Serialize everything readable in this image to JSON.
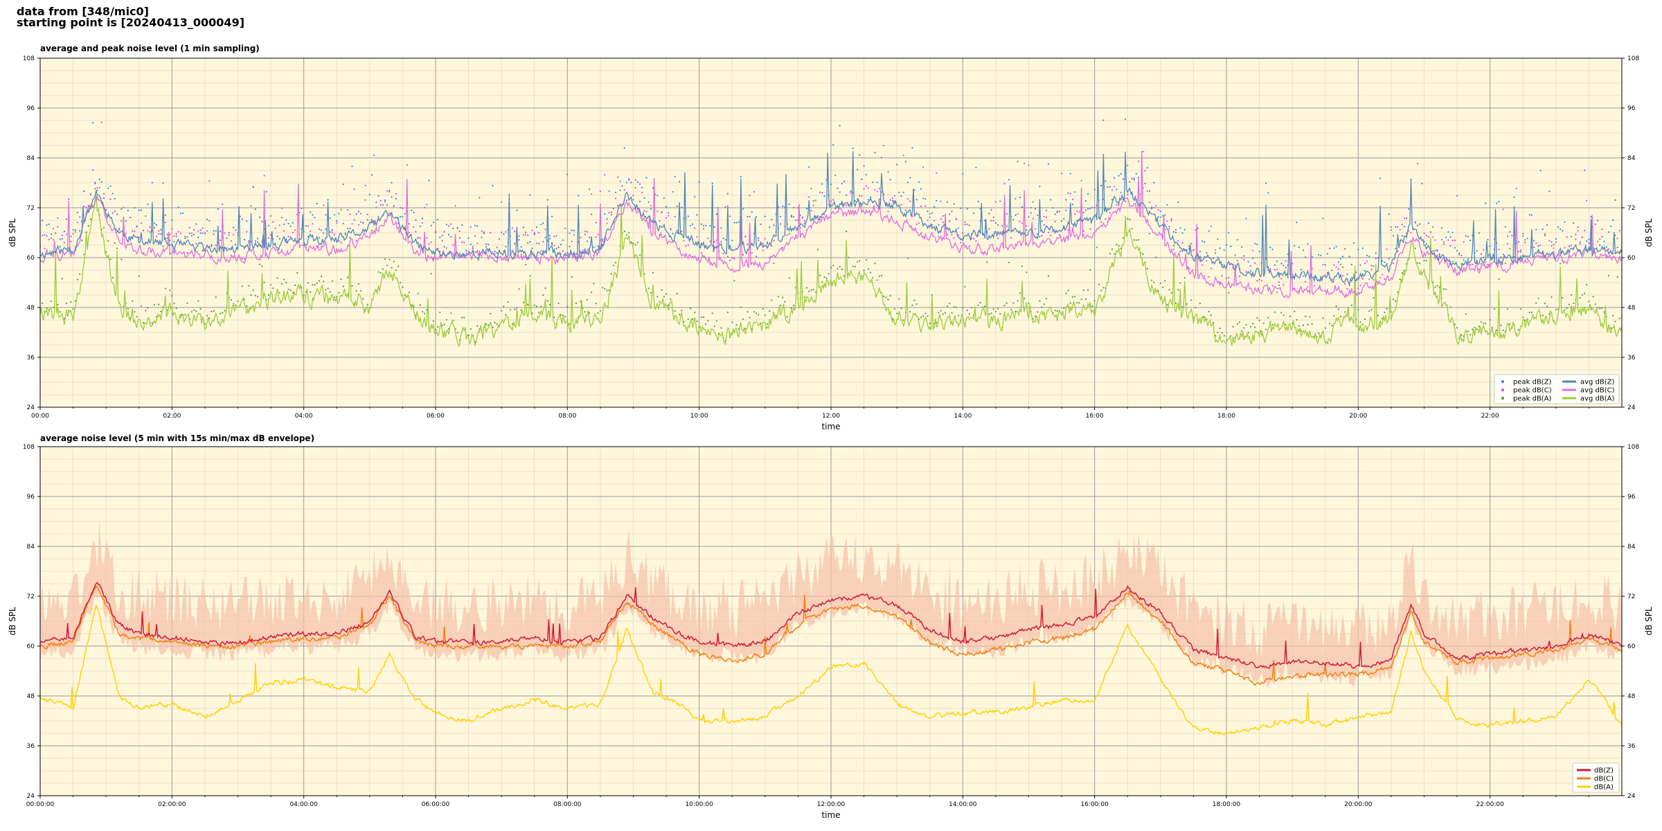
{
  "header": {
    "line1": "data from [348/mic0]",
    "line2": "starting point is [20240413_000049]"
  },
  "colors": {
    "plot_bg": "#fff7dc",
    "grid_major": "#9a9a9a",
    "grid_minor": "#e0d9c4",
    "peak_z": "#1f8fd6",
    "peak_c": "#e83ce8",
    "peak_a": "#4a9c3a",
    "avg_z": "#4f86b8",
    "avg_c": "#e06ce0",
    "avg_a": "#9ccc3c",
    "env": "#f5c0a8",
    "dbz": "#d01a3a",
    "dbc": "#f57f12",
    "dba": "#ffd20a"
  },
  "chart_data": [
    {
      "type": "line",
      "title": "average and peak noise level (1 min sampling)",
      "xlabel": "time",
      "ylabel": "dB SPL",
      "ylim": [
        24,
        108
      ],
      "xlim_hours": [
        0,
        24
      ],
      "yticks": [
        "24",
        "36",
        "48",
        "60",
        "72",
        "84",
        "96",
        "108"
      ],
      "xtick_labels": [
        "00:00",
        "02:00",
        "04:00",
        "06:00",
        "08:00",
        "10:00",
        "12:00",
        "14:00",
        "16:00",
        "18:00",
        "20:00",
        "22:00"
      ],
      "grid": true,
      "legend_position": "bottom-right",
      "legend": [
        "peak dB(Z)",
        "peak dB(C)",
        "peak dB(A)",
        "avg dB(Z)",
        "avg dB(C)",
        "avg dB(A)"
      ],
      "x_hours": [
        0,
        0.5,
        0.85,
        1.2,
        1.5,
        2.0,
        2.5,
        3.0,
        3.5,
        4.0,
        4.5,
        5.0,
        5.3,
        5.7,
        6.0,
        6.5,
        7.0,
        7.5,
        8.0,
        8.5,
        8.9,
        9.3,
        9.7,
        10.0,
        10.5,
        11.0,
        11.5,
        12.0,
        12.5,
        13.0,
        13.5,
        14.0,
        14.5,
        15.0,
        15.5,
        16.0,
        16.5,
        17.0,
        17.5,
        18.0,
        18.5,
        19.0,
        19.5,
        20.0,
        20.5,
        20.8,
        21.0,
        21.5,
        22.0,
        22.5,
        23.0,
        23.5,
        24.0
      ],
      "series": [
        {
          "name": "avg dB(Z)",
          "values": [
            61,
            62,
            76,
            66,
            64,
            63,
            62,
            62,
            63,
            64,
            64,
            67,
            71,
            63,
            61,
            61,
            61,
            61,
            61,
            62,
            75,
            68,
            65,
            63,
            62,
            63,
            68,
            72,
            73,
            72,
            68,
            65,
            66,
            66,
            67,
            69,
            76,
            68,
            60,
            58,
            56,
            56,
            55,
            55,
            58,
            68,
            63,
            58,
            59,
            60,
            61,
            62,
            61
          ]
        },
        {
          "name": "avg dB(C)",
          "values": [
            60,
            61,
            75,
            64,
            62,
            61,
            60,
            60,
            61,
            62,
            62,
            65,
            70,
            61,
            60,
            60,
            60,
            60,
            60,
            61,
            74,
            66,
            62,
            60,
            58,
            59,
            65,
            70,
            71,
            69,
            65,
            62,
            62,
            63,
            64,
            66,
            74,
            65,
            56,
            54,
            52,
            52,
            52,
            52,
            55,
            66,
            61,
            57,
            58,
            59,
            60,
            61,
            60
          ]
        },
        {
          "name": "avg dB(A)",
          "values": [
            47,
            46,
            72,
            48,
            45,
            47,
            44,
            47,
            50,
            51,
            50,
            48,
            58,
            46,
            43,
            41,
            43,
            47,
            44,
            45,
            64,
            50,
            46,
            43,
            42,
            44,
            48,
            55,
            55,
            46,
            44,
            45,
            45,
            46,
            47,
            47,
            66,
            50,
            45,
            40,
            42,
            43,
            42,
            44,
            45,
            63,
            55,
            42,
            42,
            44,
            47,
            48,
            41
          ]
        }
      ],
      "peak_series": [
        {
          "name": "peak dB(Z)",
          "offset": 8
        },
        {
          "name": "peak dB(C)",
          "offset": 7
        },
        {
          "name": "peak dB(A)",
          "offset": 4
        }
      ]
    },
    {
      "type": "line",
      "title": "average noise level (5 min with 15s min/max dB envelope)",
      "xlabel": "time",
      "ylabel": "dB SPL",
      "ylim": [
        24,
        108
      ],
      "xlim_hours": [
        0,
        24
      ],
      "yticks": [
        "24",
        "36",
        "48",
        "60",
        "72",
        "84",
        "96",
        "108"
      ],
      "xtick_labels": [
        "00:00:00",
        "02:00:00",
        "04:00:00",
        "06:00:00",
        "08:00:00",
        "10:00:00",
        "12:00:00",
        "14:00:00",
        "16:00:00",
        "18:00:00",
        "20:00:00",
        "22:00:00"
      ],
      "grid": true,
      "legend_position": "bottom-right",
      "legend": [
        "dB(Z)",
        "dB(C)",
        "dB(A)"
      ],
      "x_hours": [
        0,
        0.5,
        0.85,
        1.2,
        1.5,
        2.0,
        2.5,
        3.0,
        3.5,
        4.0,
        4.5,
        5.0,
        5.3,
        5.7,
        6.0,
        6.5,
        7.0,
        7.5,
        8.0,
        8.5,
        8.9,
        9.3,
        9.7,
        10.0,
        10.5,
        11.0,
        11.5,
        12.0,
        12.5,
        13.0,
        13.5,
        14.0,
        14.5,
        15.0,
        15.5,
        16.0,
        16.5,
        17.0,
        17.5,
        18.0,
        18.5,
        19.0,
        19.5,
        20.0,
        20.5,
        20.8,
        21.0,
        21.5,
        22.0,
        22.5,
        23.0,
        23.5,
        24.0
      ],
      "series": [
        {
          "name": "dB(Z)",
          "values": [
            61,
            62,
            76,
            65,
            63,
            62,
            61,
            61,
            62,
            63,
            63,
            66,
            73,
            62,
            61,
            61,
            61,
            62,
            61,
            62,
            72,
            67,
            63,
            61,
            60,
            61,
            68,
            71,
            72,
            70,
            64,
            61,
            62,
            64,
            65,
            67,
            74,
            68,
            59,
            57,
            55,
            56,
            56,
            55,
            57,
            70,
            63,
            57,
            58,
            59,
            60,
            63,
            60
          ]
        },
        {
          "name": "dB(C)",
          "values": [
            60,
            61,
            75,
            63,
            62,
            61,
            60,
            60,
            61,
            62,
            62,
            65,
            72,
            61,
            60,
            60,
            60,
            60,
            60,
            61,
            71,
            65,
            61,
            58,
            56,
            58,
            65,
            69,
            70,
            67,
            61,
            58,
            59,
            61,
            62,
            64,
            73,
            66,
            56,
            54,
            51,
            53,
            53,
            53,
            55,
            68,
            61,
            56,
            57,
            58,
            59,
            62,
            59
          ]
        },
        {
          "name": "dB(A)",
          "values": [
            48,
            45,
            70,
            48,
            45,
            46,
            43,
            47,
            51,
            52,
            50,
            49,
            58,
            47,
            44,
            42,
            45,
            47,
            45,
            46,
            64,
            49,
            46,
            42,
            42,
            43,
            48,
            55,
            56,
            46,
            43,
            44,
            44,
            45,
            47,
            47,
            65,
            52,
            40,
            39,
            40,
            42,
            41,
            43,
            44,
            63,
            54,
            42,
            41,
            42,
            43,
            52,
            41
          ]
        }
      ],
      "envelope": {
        "series": "dB(Z)",
        "upper_offset": 14,
        "lower_offset": 4
      }
    }
  ]
}
